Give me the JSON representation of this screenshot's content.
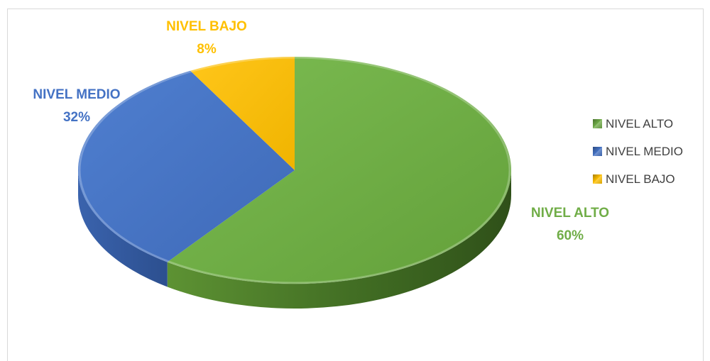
{
  "chart_data": {
    "type": "pie",
    "style": "3d",
    "categories": [
      "NIVEL ALTO",
      "NIVEL MEDIO",
      "NIVEL BAJO"
    ],
    "values": [
      60,
      32,
      8
    ],
    "value_labels": [
      "60%",
      "32%",
      "8%"
    ],
    "colors": [
      "#70ad47",
      "#4472c4",
      "#ffc000"
    ],
    "title": "",
    "legend_position": "right"
  },
  "legend": {
    "items": [
      {
        "label": "NIVEL ALTO",
        "color": "#70ad47"
      },
      {
        "label": "NIVEL MEDIO",
        "color": "#4472c4"
      },
      {
        "label": "NIVEL BAJO",
        "color": "#ffc000"
      }
    ]
  },
  "labels": {
    "alto": {
      "name": "NIVEL ALTO",
      "pct": "60%",
      "color": "#70ad47"
    },
    "medio": {
      "name": "NIVEL MEDIO",
      "pct": "32%",
      "color": "#4472c4"
    },
    "bajo": {
      "name": "NIVEL BAJO",
      "pct": "8%",
      "color": "#ffc000"
    }
  }
}
